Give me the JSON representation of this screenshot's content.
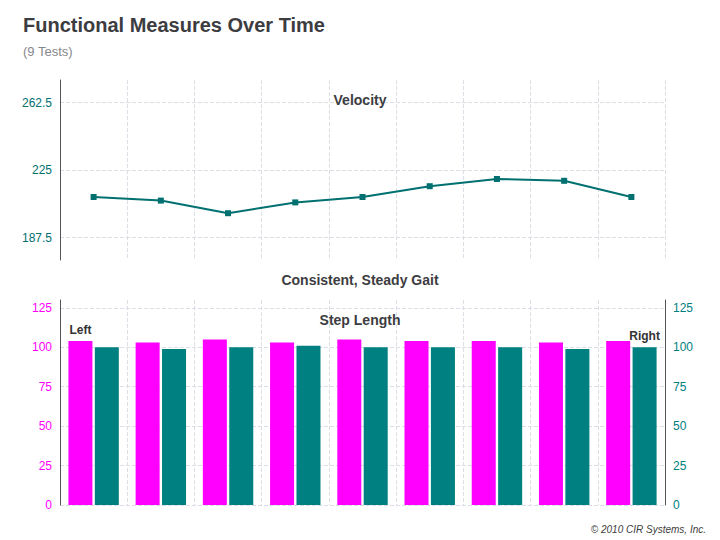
{
  "chart_data": [
    {
      "type": "line",
      "title": "Functional Measures Over Time",
      "subtitle": "(9 Tests)",
      "annotations": [
        {
          "text": "Velocity"
        }
      ],
      "categories": [
        null,
        null,
        null,
        null,
        null,
        null,
        null,
        null,
        null
      ],
      "series": [
        {
          "color": "#007070",
          "marker": "square",
          "values": [
            210,
            208,
            201,
            207,
            210,
            216,
            220,
            219,
            210
          ]
        }
      ],
      "ylim": [
        175,
        275
      ],
      "yticks": [
        187.5,
        225,
        262.5
      ],
      "grid": true,
      "tick_labels": "y"
    },
    {
      "type": "bar",
      "title": "Consistent, Steady Gait",
      "annotations": [
        {
          "text": "Step Length"
        },
        {
          "text": "Left",
          "series": 0,
          "point": 0
        },
        {
          "text": "Right",
          "series": 1,
          "point": 8
        }
      ],
      "footer": "© 2010 CIR Systems, Inc.",
      "categories": [
        null,
        null,
        null,
        null,
        null,
        null,
        null,
        null,
        null
      ],
      "series": [
        {
          "color": "#FF00FF",
          "values": [
            104,
            103,
            105,
            103,
            105,
            104,
            104,
            103,
            104
          ]
        },
        {
          "color": "#008080",
          "values": [
            100,
            99,
            100,
            101,
            100,
            100,
            100,
            99,
            100
          ]
        }
      ],
      "ylim": [
        0,
        130
      ],
      "yticks": [
        0,
        25,
        50,
        75,
        100,
        125
      ],
      "y2lim": [
        0,
        130
      ],
      "y2ticks": [
        0,
        25,
        50,
        75,
        100,
        125
      ],
      "grid": true,
      "tick_labels": "y"
    }
  ]
}
